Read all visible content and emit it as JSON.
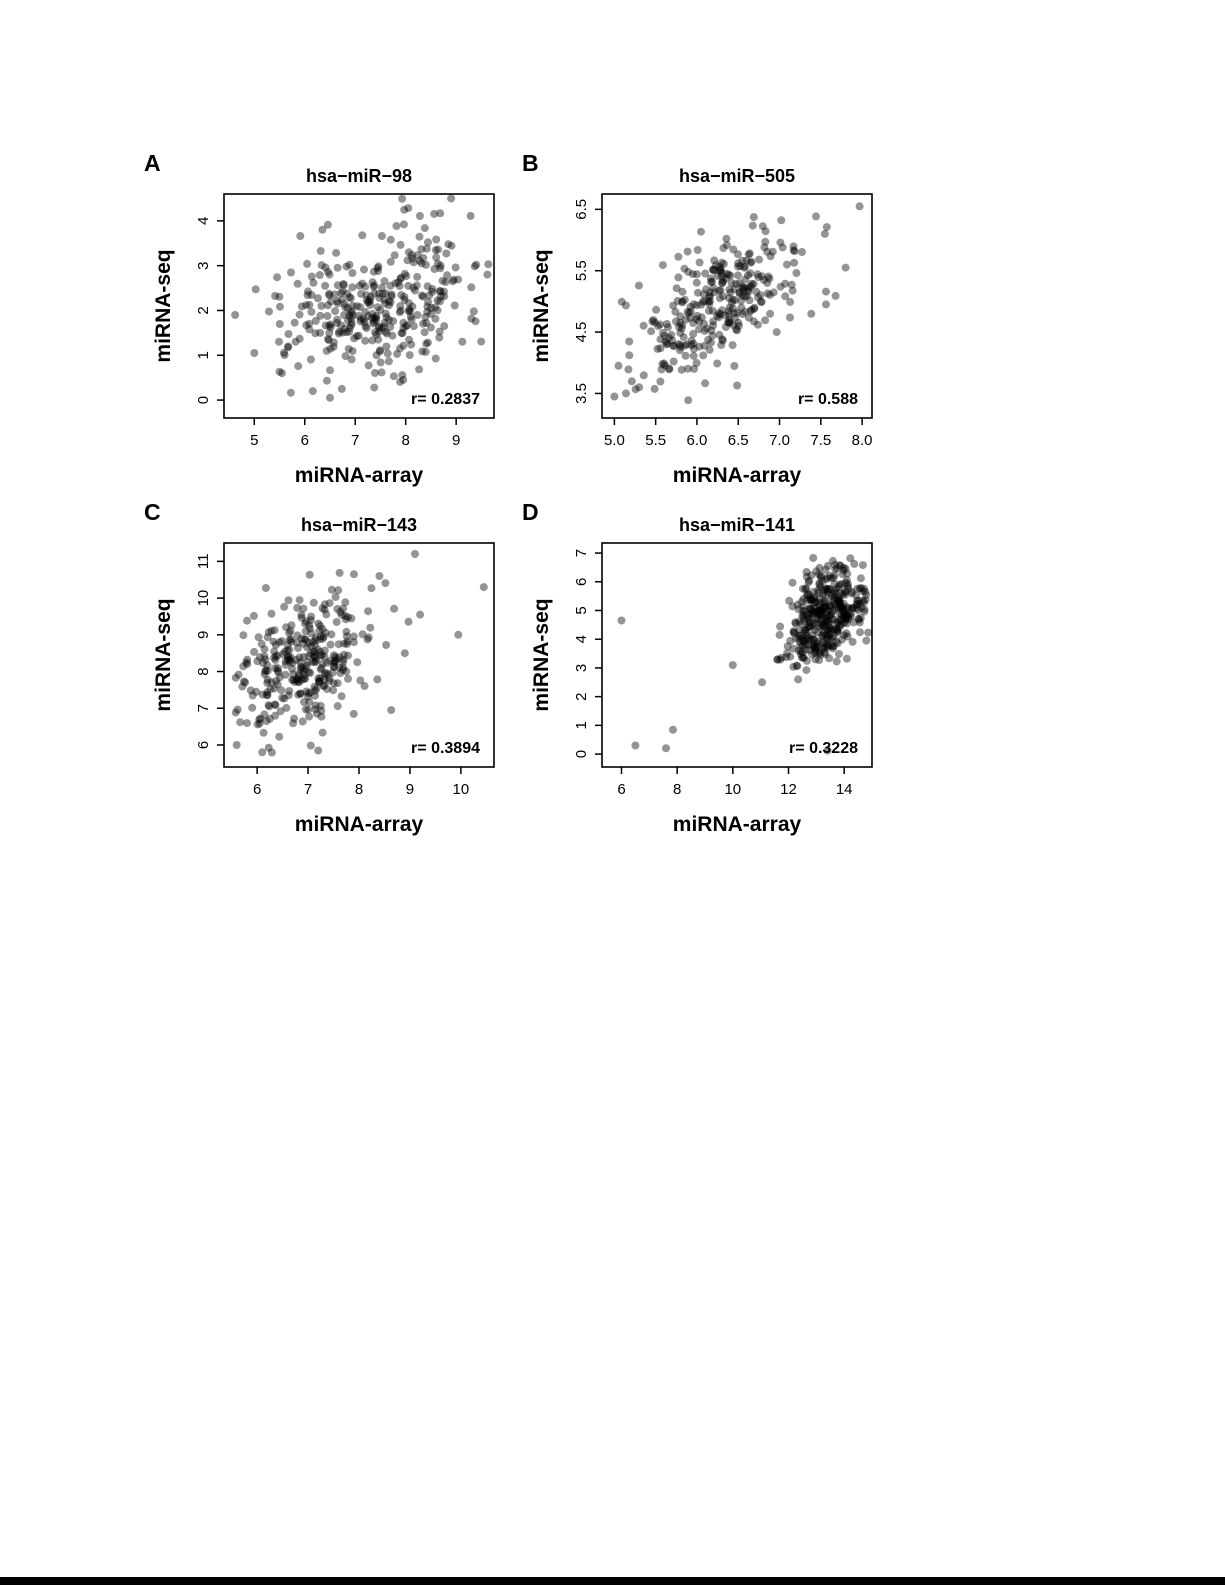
{
  "figure": {
    "panels": [
      "A",
      "B",
      "C",
      "D"
    ],
    "shared_xlabel": "miRNA-array",
    "shared_ylabel": "miRNA-seq"
  },
  "point_style": {
    "color": "#000000",
    "opacity": 0.42,
    "radius": 4
  },
  "chart_data": [
    {
      "type": "scatter",
      "panel": "A",
      "title": "hsa−miR−98",
      "xlabel": "miRNA-array",
      "ylabel": "miRNA-seq",
      "r_label": "r= 0.2837",
      "r": 0.2837,
      "xlim": [
        4.4,
        9.75
      ],
      "ylim": [
        -0.4,
        4.6
      ],
      "xtick_values": [
        5,
        6,
        7,
        8,
        9
      ],
      "xtick_labels": [
        "5",
        "6",
        "7",
        "8",
        "9"
      ],
      "ytick_values": [
        0,
        1,
        2,
        3,
        4
      ],
      "ytick_labels": [
        "0",
        "1",
        "2",
        "3",
        "4"
      ],
      "grid": false,
      "cluster": {
        "n": 340,
        "x_mean": 7.5,
        "x_sd": 0.95,
        "y_mean": 2.15,
        "y_sd": 0.85,
        "x_range": [
          4.55,
          9.65
        ],
        "y_range": [
          0.02,
          4.5
        ],
        "seed": 7
      },
      "extra_points": [
        [
          4.62,
          1.9
        ],
        [
          5.0,
          1.05
        ],
        [
          6.5,
          0.05
        ],
        [
          5.55,
          0.6
        ],
        [
          9.62,
          2.8
        ],
        [
          8.9,
          4.5
        ],
        [
          6.35,
          3.8
        ],
        [
          7.95,
          0.45
        ]
      ]
    },
    {
      "type": "scatter",
      "panel": "B",
      "title": "hsa−miR−505",
      "xlabel": "miRNA-array",
      "ylabel": "miRNA-seq",
      "r_label": "r= 0.588",
      "r": 0.588,
      "xlim": [
        4.85,
        8.12
      ],
      "ylim": [
        3.1,
        6.75
      ],
      "xtick_values": [
        5.0,
        5.5,
        6.0,
        6.5,
        7.0,
        7.5,
        8.0
      ],
      "xtick_labels": [
        "5.0",
        "5.5",
        "6.0",
        "6.5",
        "7.0",
        "7.5",
        "8.0"
      ],
      "ytick_values": [
        3.5,
        4.5,
        5.5,
        6.5
      ],
      "ytick_labels": [
        "3.5",
        "4.5",
        "5.5",
        "6.5"
      ],
      "grid": false,
      "cluster": {
        "n": 300,
        "x_mean": 6.15,
        "x_sd": 0.55,
        "y_mean": 4.9,
        "y_sd": 0.6,
        "x_range": [
          4.95,
          8.0
        ],
        "y_range": [
          3.3,
          6.6
        ],
        "seed": 13
      },
      "extra_points": [
        [
          7.97,
          6.55
        ],
        [
          5.0,
          3.45
        ],
        [
          5.05,
          3.95
        ],
        [
          7.8,
          5.55
        ],
        [
          7.55,
          6.1
        ],
        [
          5.3,
          3.6
        ]
      ]
    },
    {
      "type": "scatter",
      "panel": "C",
      "title": "hsa−miR−143",
      "xlabel": "miRNA-array",
      "ylabel": "miRNA-seq",
      "r_label": "r= 0.3894",
      "r": 0.3894,
      "xlim": [
        5.35,
        10.65
      ],
      "ylim": [
        5.4,
        11.5
      ],
      "xtick_values": [
        6,
        7,
        8,
        9,
        10
      ],
      "xtick_labels": [
        "6",
        "7",
        "8",
        "9",
        "10"
      ],
      "ytick_values": [
        6,
        7,
        8,
        9,
        10,
        11
      ],
      "ytick_labels": [
        "6",
        "7",
        "8",
        "9",
        "10",
        "11"
      ],
      "grid": false,
      "cluster": {
        "n": 310,
        "x_mean": 6.9,
        "x_sd": 0.7,
        "y_mean": 8.25,
        "y_sd": 1.0,
        "x_range": [
          5.5,
          10.5
        ],
        "y_range": [
          5.75,
          11.25
        ],
        "seed": 21
      },
      "extra_points": [
        [
          9.1,
          11.2
        ],
        [
          10.45,
          10.3
        ],
        [
          9.95,
          9.0
        ],
        [
          9.2,
          9.55
        ],
        [
          8.4,
          10.6
        ],
        [
          7.9,
          10.65
        ],
        [
          5.6,
          6.0
        ],
        [
          6.1,
          5.8
        ],
        [
          7.2,
          5.85
        ],
        [
          8.9,
          8.5
        ]
      ]
    },
    {
      "type": "scatter",
      "panel": "D",
      "title": "hsa−miR−141",
      "xlabel": "miRNA-array",
      "ylabel": "miRNA-seq",
      "r_label": "r= 0.3228",
      "r": 0.3228,
      "xlim": [
        5.3,
        15.0
      ],
      "ylim": [
        -0.45,
        7.35
      ],
      "xtick_values": [
        6,
        8,
        10,
        12,
        14
      ],
      "xtick_labels": [
        "6",
        "8",
        "10",
        "12",
        "14"
      ],
      "ytick_values": [
        0,
        1,
        2,
        3,
        4,
        5,
        6,
        7
      ],
      "ytick_labels": [
        "0",
        "1",
        "2",
        "3",
        "4",
        "5",
        "6",
        "7"
      ],
      "grid": false,
      "cluster": {
        "n": 380,
        "x_mean": 13.3,
        "x_sd": 0.75,
        "y_mean": 4.8,
        "y_sd": 0.85,
        "x_range": [
          11.2,
          14.9
        ],
        "y_range": [
          2.9,
          6.85
        ],
        "seed": 42
      },
      "extra_points": [
        [
          6.0,
          4.65
        ],
        [
          6.5,
          0.3
        ],
        [
          7.6,
          0.2
        ],
        [
          7.85,
          0.85
        ],
        [
          10.0,
          3.1
        ],
        [
          11.05,
          2.5
        ],
        [
          13.4,
          0.12
        ],
        [
          12.35,
          2.6
        ],
        [
          11.6,
          3.3
        ]
      ]
    }
  ]
}
